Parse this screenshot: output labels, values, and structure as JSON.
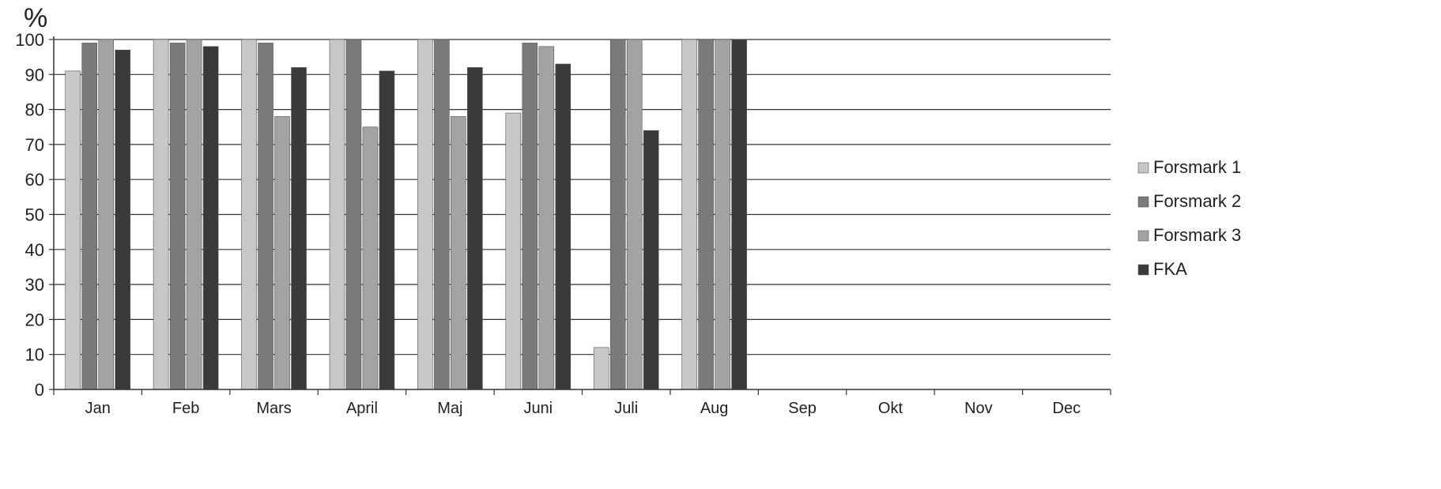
{
  "chart_data": {
    "type": "bar",
    "title": "",
    "unit_label": "%",
    "xlabel": "",
    "ylabel": "",
    "ylim": [
      0,
      100
    ],
    "y_ticks": [
      0,
      10,
      20,
      30,
      40,
      50,
      60,
      70,
      80,
      90,
      100
    ],
    "grid": "horizontal",
    "legend_position": "right",
    "categories": [
      "Jan",
      "Feb",
      "Mars",
      "April",
      "Maj",
      "Juni",
      "Juli",
      "Aug",
      "Sep",
      "Okt",
      "Nov",
      "Dec"
    ],
    "series": [
      {
        "name": "Forsmark 1",
        "color": "#c7c7c7",
        "values": [
          91,
          100,
          100,
          100,
          100,
          79,
          12,
          100,
          null,
          null,
          null,
          null
        ]
      },
      {
        "name": "Forsmark 2",
        "color": "#7a7a7a",
        "values": [
          99,
          99,
          99,
          100,
          100,
          99,
          100,
          100,
          null,
          null,
          null,
          null
        ]
      },
      {
        "name": "Forsmark 3",
        "color": "#a3a3a3",
        "values": [
          100,
          100,
          78,
          75,
          78,
          98,
          100,
          100,
          null,
          null,
          null,
          null
        ]
      },
      {
        "name": "FKA",
        "color": "#3a3a3a",
        "values": [
          97,
          98,
          92,
          91,
          92,
          93,
          74,
          100,
          null,
          null,
          null,
          null
        ]
      }
    ]
  }
}
